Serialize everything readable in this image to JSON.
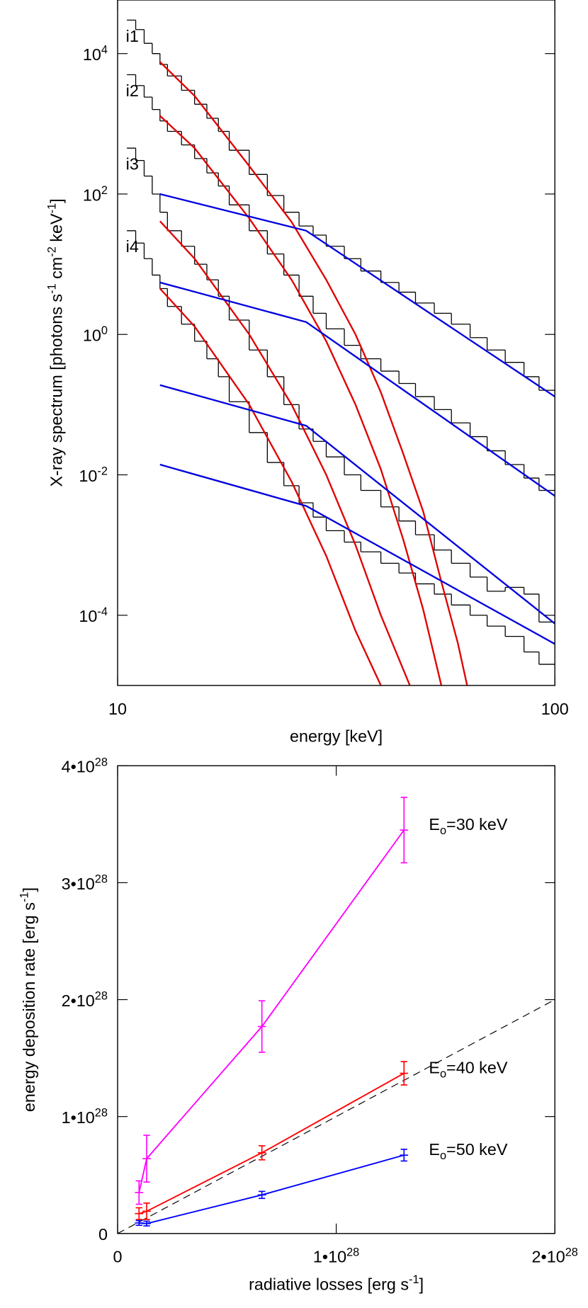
{
  "chart_data": [
    {
      "type": "histogram",
      "xlabel": "energy [keV]",
      "ylabel": "X-ray spectrum [photons s^{-1} cm^{-2} keV^{-1}]",
      "log_x": true,
      "log_y": true,
      "xlim": [
        10,
        100
      ],
      "ylim": [
        1e-05,
        58000
      ],
      "xticks": [
        10,
        100
      ],
      "yticks": [
        {
          "value": 0.0001,
          "label": "10^{-4}"
        },
        {
          "value": 0.01,
          "label": "10^{-2}"
        },
        {
          "value": 1,
          "label": "10^{0}"
        },
        {
          "value": 100,
          "label": "10^{2}"
        },
        {
          "value": 10000,
          "label": "10^{4}"
        }
      ],
      "bins": [
        10.5,
        11,
        11.5,
        12,
        12.5,
        13,
        14,
        15,
        16,
        17,
        18,
        20,
        22,
        24,
        26,
        28,
        30,
        33,
        36,
        40,
        44,
        48,
        53,
        58,
        64,
        70,
        77,
        85,
        92,
        100
      ],
      "series": [
        {
          "name": "i1",
          "color": "#000000",
          "values": [
            30000,
            22000,
            14000,
            10000,
            7000,
            4800,
            3000,
            1900,
            1200,
            780,
            420,
            190,
            95,
            55,
            35,
            26,
            18,
            12,
            8,
            5.5,
            4,
            2.8,
            2,
            1.4,
            0.9,
            0.6,
            0.4,
            0.25,
            0.16
          ]
        },
        {
          "name": "i2",
          "color": "#000000",
          "values": [
            5000,
            3500,
            2400,
            1600,
            1100,
            780,
            500,
            320,
            200,
            130,
            70,
            30,
            14,
            7,
            3.5,
            2,
            1.2,
            0.7,
            0.45,
            0.3,
            0.2,
            0.13,
            0.085,
            0.055,
            0.035,
            0.022,
            0.014,
            0.009,
            0.006
          ]
        },
        {
          "name": "i3",
          "color": "#000000",
          "values": [
            450,
            300,
            180,
            100,
            55,
            30,
            18,
            10,
            6,
            3.5,
            1.6,
            0.6,
            0.25,
            0.1,
            0.045,
            0.03,
            0.018,
            0.01,
            0.006,
            0.0035,
            0.0022,
            0.0014,
            0.00085,
            0.00055,
            0.00035,
            0.00022,
            0.00025,
            0.0002,
            8e-05
          ]
        },
        {
          "name": "i4",
          "color": "#000000",
          "values": [
            30,
            20,
            12,
            7,
            4.5,
            2.5,
            1.4,
            0.8,
            0.45,
            0.25,
            0.11,
            0.04,
            0.015,
            0.007,
            0.004,
            0.0025,
            0.0016,
            0.0011,
            0.0008,
            0.00055,
            0.0004,
            0.00028,
            0.0002,
            0.00014,
            0.0001,
            7e-05,
            5e-05,
            3e-05,
            2e-05
          ]
        }
      ],
      "fits": [
        {
          "color": "#e00000",
          "x": [
            12.5,
            15,
            20,
            25,
            30,
            35,
            40,
            45,
            50,
            55,
            60,
            63
          ],
          "values": [
            7600,
            2500,
            250,
            40,
            6,
            1,
            0.15,
            0.02,
            0.003,
            0.0003,
            4e-05,
            1e-05
          ]
        },
        {
          "color": "#e00000",
          "x": [
            12.5,
            15,
            20,
            25,
            30,
            35,
            40,
            45,
            50,
            55
          ],
          "values": [
            1300,
            450,
            45,
            6,
            0.8,
            0.1,
            0.012,
            0.0012,
            0.00012,
            1e-05
          ]
        },
        {
          "color": "#e00000",
          "x": [
            12.5,
            15,
            20,
            25,
            30,
            35,
            40,
            46.6
          ],
          "values": [
            41,
            12,
            1,
            0.1,
            0.01,
            0.001,
            0.0001,
            1e-05
          ]
        },
        {
          "color": "#e00000",
          "x": [
            12.5,
            15,
            20,
            25,
            30,
            35,
            40
          ],
          "values": [
            4.5,
            1.3,
            0.1,
            0.008,
            0.0007,
            6e-05,
            1e-05
          ]
        },
        {
          "color": "#0000e0",
          "x": [
            12.5,
            27,
            100
          ],
          "values": [
            100,
            30,
            0.13
          ]
        },
        {
          "color": "#0000e0",
          "x": [
            12.5,
            27,
            100
          ],
          "values": [
            5.5,
            1.5,
            0.005
          ]
        },
        {
          "color": "#0000e0",
          "x": [
            12.5,
            27,
            100
          ],
          "values": [
            0.19,
            0.05,
            7.6e-05
          ]
        },
        {
          "color": "#0000e0",
          "x": [
            12.5,
            27,
            100
          ],
          "values": [
            0.014,
            0.0036,
            3.9e-05
          ]
        }
      ]
    },
    {
      "type": "line",
      "xlabel": "radiative losses [erg s^{-1}]",
      "ylabel": "energy deposition rate [erg s^{-1}]",
      "xlim": [
        0,
        2e+28
      ],
      "ylim": [
        0,
        4e+28
      ],
      "xticks": [
        0,
        {
          "value": 1e+28,
          "label": "1•10^{28}"
        },
        {
          "value": 2e+28,
          "label": "2•10^{28}"
        }
      ],
      "yticks": [
        0,
        {
          "value": 1e+28,
          "label": "1•10^{28}"
        },
        {
          "value": 2e+28,
          "label": "2•10^{28}"
        },
        {
          "value": 3e+28,
          "label": "3•10^{28}"
        },
        {
          "value": 4e+28,
          "label": "4•10^{28}"
        }
      ],
      "x": [
        9.8e+26,
        1.33e+27,
        6.6e+27,
        1.31e+28
      ],
      "series": [
        {
          "name": "E_{o}=30 keV",
          "color": "#ff00ff",
          "values": [
            3.5e+27,
            6.4e+27,
            1.77e+28,
            3.45e+28
          ],
          "errors": [
            1e+27,
            2e+27,
            2.2e+27,
            2.8e+27
          ]
        },
        {
          "name": "E_{o}=40 keV",
          "color": "#ff0000",
          "values": [
            1.7e+27,
            1.9e+27,
            6.9e+27,
            1.37e+28
          ],
          "errors": [
            5e+26,
            7e+26,
            6e+26,
            1e+27
          ]
        },
        {
          "name": "E_{o}=50 keV",
          "color": "#0000ff",
          "values": [
            9e+26,
            8.5e+26,
            3.3e+27,
            6.7e+27
          ],
          "errors": [
            2e+26,
            2e+26,
            3e+26,
            5e+26
          ]
        }
      ],
      "reference_line": {
        "x": [
          0,
          2e+28
        ],
        "values": [
          0,
          2e+28
        ]
      }
    }
  ]
}
